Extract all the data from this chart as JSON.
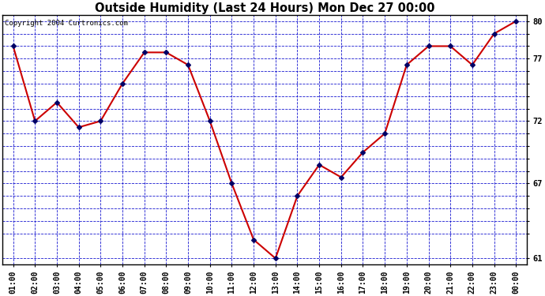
{
  "title": "Outside Humidity (Last 24 Hours) Mon Dec 27 00:00",
  "copyright": "Copyright 2004 Curtronics.com",
  "line_color": "#cc0000",
  "marker_color": "#000066",
  "bg_color": "#ffffff",
  "plot_bg_color": "#ffffff",
  "grid_color": "#0000cc",
  "x_labels": [
    "01:00",
    "02:00",
    "03:00",
    "04:00",
    "05:00",
    "06:00",
    "07:00",
    "08:00",
    "09:00",
    "10:00",
    "11:00",
    "12:00",
    "13:00",
    "14:00",
    "15:00",
    "16:00",
    "17:00",
    "18:00",
    "19:00",
    "20:00",
    "21:00",
    "22:00",
    "23:00",
    "00:00"
  ],
  "y_values": [
    78,
    72,
    73.5,
    71.5,
    72,
    75,
    77.5,
    77.5,
    76.5,
    72,
    67,
    62.5,
    61,
    66,
    68.5,
    67.5,
    69.5,
    71,
    76.5,
    78,
    78,
    76.5,
    79,
    80
  ],
  "ylim": [
    60.5,
    80.5
  ],
  "ytick_positions": [
    61,
    63,
    64,
    65,
    66,
    67,
    68,
    69,
    70,
    71,
    72,
    73,
    74,
    75,
    76,
    77,
    78,
    79,
    80
  ],
  "ytick_labels": [
    "61",
    "",
    "",
    "",
    "",
    "67",
    "",
    "",
    "",
    "",
    "72",
    "",
    "",
    "",
    "",
    "77",
    "",
    "",
    "80"
  ]
}
